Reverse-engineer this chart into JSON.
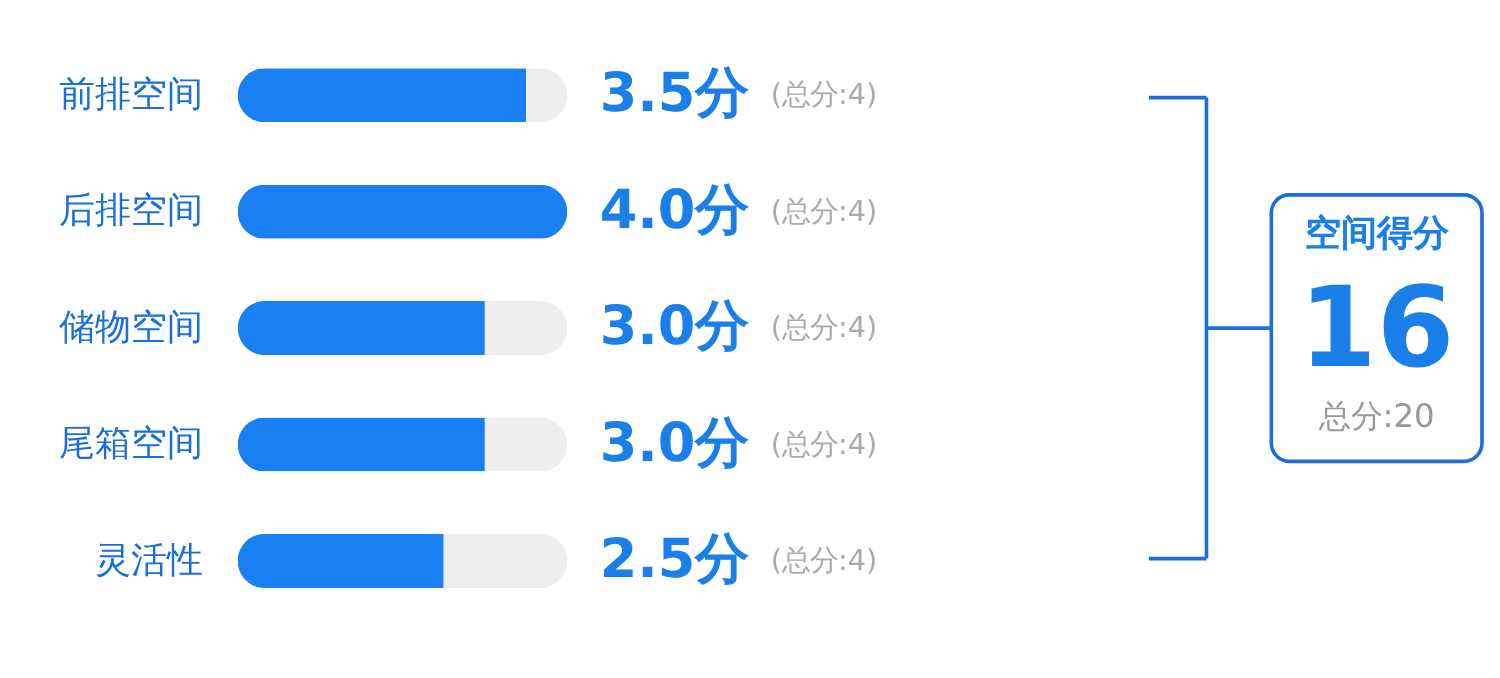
{
  "chart_data": [
    {
      "type": "bar",
      "orientation": "horizontal",
      "stacked": true,
      "categories": [
        "前排空间",
        "后排空间",
        "储物空间",
        "尾箱空间",
        "灵活性"
      ],
      "series": [
        {
          "color": "#1a7ff2",
          "values": [
            3.5,
            4.0,
            3.0,
            3.0,
            2.5
          ],
          "value_labels": [
            "3.5分",
            "4.0分",
            "3.0分",
            "3.0分",
            "2.5分"
          ]
        },
        {
          "color": "#eeeeee",
          "values": [
            0.5,
            0,
            1.0,
            1.0,
            1.5
          ]
        }
      ],
      "xlim": [
        0,
        4
      ],
      "tick_labels": "y",
      "grid": false,
      "legend": false,
      "annotations": [
        "(总分:4)",
        "(总分:4)",
        "(总分:4)",
        "(总分:4)",
        "(总分:4)"
      ]
    },
    {
      "type": "other",
      "title": "空间得分",
      "annotations": [
        "16",
        "总分:20"
      ]
    }
  ]
}
